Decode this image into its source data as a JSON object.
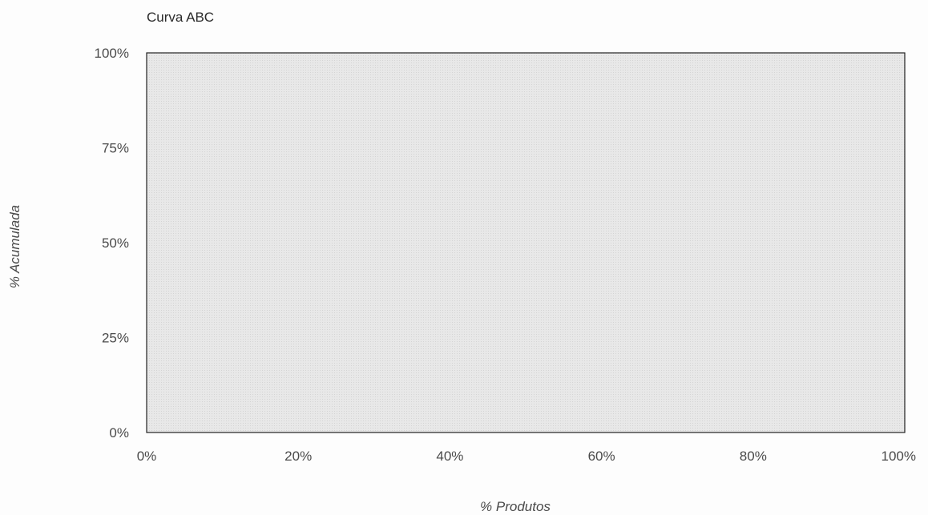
{
  "chart_data": {
    "type": "line",
    "title": "Curva ABC",
    "xlabel": "% Produtos",
    "ylabel": "% Acumulada",
    "xlim": [
      0,
      100
    ],
    "ylim": [
      0,
      100
    ],
    "x_ticks": [
      0,
      20,
      40,
      60,
      80,
      100
    ],
    "y_ticks": [
      0,
      25,
      50,
      75,
      100
    ],
    "x_tick_labels": [
      "0%",
      "20%",
      "40%",
      "60%",
      "80%",
      "100%"
    ],
    "y_tick_labels": [
      "0%",
      "25%",
      "50%",
      "75%",
      "100%"
    ],
    "series": [],
    "grid": false,
    "plot_background": "#e6e6e6",
    "plot_border": "#222222"
  }
}
